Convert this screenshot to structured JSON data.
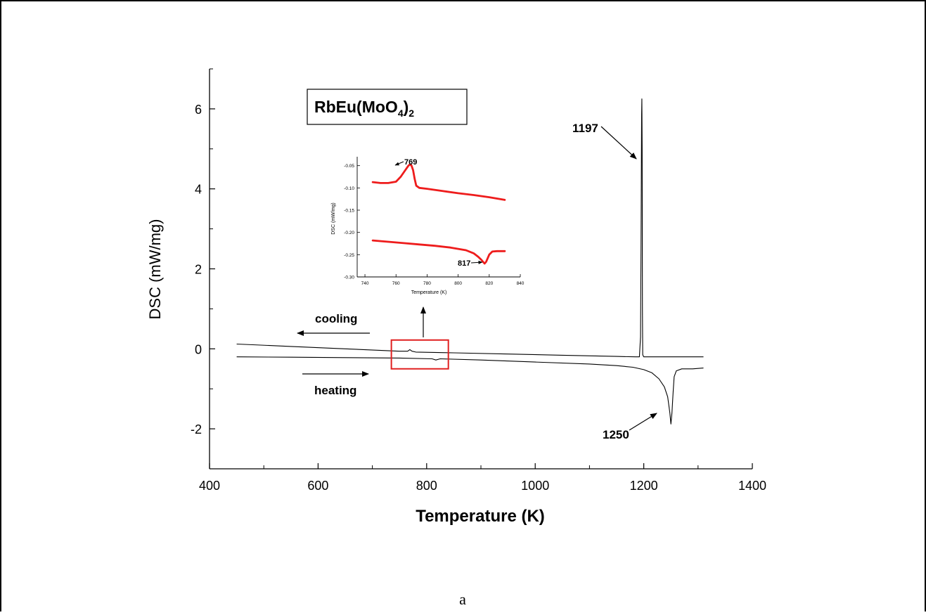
{
  "chart_data": [
    {
      "type": "line",
      "title": "",
      "xlabel": "Temperature (K)",
      "ylabel": "DSC (mW/mg)",
      "xlim": [
        400,
        1400
      ],
      "ylim": [
        -3,
        7
      ],
      "xticks": [
        400,
        600,
        800,
        1000,
        1200,
        1400
      ],
      "xtick_labels": [
        "400",
        "600",
        "800",
        "1000",
        "1200",
        "1400"
      ],
      "yticks": [
        -2,
        0,
        2,
        4,
        6
      ],
      "ytick_labels": [
        "-2",
        "0",
        "2",
        "4",
        "6"
      ],
      "grid": false,
      "series": [
        {
          "name": "cooling",
          "color": "#000000",
          "x": [
            450,
            550,
            650,
            750,
            765,
            769,
            773,
            780,
            850,
            950,
            1050,
            1150,
            1185,
            1192,
            1194,
            1195,
            1196,
            1196.5,
            1197,
            1197.5,
            1198,
            1200,
            1220,
            1310
          ],
          "y": [
            0.12,
            0.06,
            0.0,
            -0.06,
            -0.06,
            -0.02,
            -0.06,
            -0.08,
            -0.1,
            -0.13,
            -0.16,
            -0.19,
            -0.2,
            -0.2,
            0.3,
            2.5,
            5.8,
            6.25,
            5.0,
            1.0,
            -0.15,
            -0.2,
            -0.2,
            -0.2
          ]
        },
        {
          "name": "heating",
          "color": "#000000",
          "x": [
            450,
            550,
            650,
            750,
            810,
            817,
            825,
            900,
            1000,
            1100,
            1150,
            1180,
            1200,
            1215,
            1228,
            1238,
            1244,
            1248,
            1250,
            1252,
            1254,
            1256,
            1260,
            1270,
            1290,
            1310
          ],
          "y": [
            -0.2,
            -0.21,
            -0.22,
            -0.23,
            -0.25,
            -0.28,
            -0.25,
            -0.28,
            -0.33,
            -0.38,
            -0.42,
            -0.46,
            -0.52,
            -0.6,
            -0.75,
            -0.95,
            -1.2,
            -1.6,
            -1.88,
            -1.6,
            -1.1,
            -0.7,
            -0.55,
            -0.5,
            -0.5,
            -0.48
          ]
        }
      ],
      "annotations": [
        {
          "text": "1197",
          "x": 1197,
          "y": 6.0
        },
        {
          "text": "1250",
          "x": 1250,
          "y": -1.85
        },
        {
          "text": "cooling"
        },
        {
          "text": "heating"
        }
      ],
      "compound_label": {
        "prefix": "RbEu(MoO",
        "sub1": "4",
        "mid": ")",
        "sub2": "2"
      },
      "highlight_box": {
        "xlim": [
          735,
          840
        ],
        "ylim": [
          -0.5,
          0.22
        ],
        "color": "#e02020"
      }
    },
    {
      "type": "line",
      "title": "",
      "xlabel": "Temperature (K)",
      "ylabel": "DSC (mW/mg)",
      "xlim": [
        735,
        840
      ],
      "ylim": [
        -0.3,
        -0.03
      ],
      "xticks": [
        740,
        760,
        780,
        800,
        820,
        840
      ],
      "xtick_labels": [
        "740",
        "760",
        "780",
        "800",
        "820",
        "840"
      ],
      "yticks": [
        -0.05,
        -0.1,
        -0.15,
        -0.2,
        -0.25,
        -0.3
      ],
      "ytick_labels": [
        "-0.05",
        "-0.10",
        "-0.15",
        "-0.20",
        "-0.25",
        "-0.30"
      ],
      "series": [
        {
          "name": "cooling",
          "color": "#ee1c1c",
          "x": [
            745,
            750,
            755,
            760,
            763,
            766,
            768,
            769,
            770,
            771,
            772,
            773,
            775,
            780,
            790,
            800,
            810,
            820,
            830
          ],
          "y": [
            -0.087,
            -0.089,
            -0.089,
            -0.086,
            -0.075,
            -0.06,
            -0.05,
            -0.047,
            -0.05,
            -0.06,
            -0.08,
            -0.095,
            -0.1,
            -0.102,
            -0.107,
            -0.112,
            -0.116,
            -0.121,
            -0.127
          ]
        },
        {
          "name": "heating",
          "color": "#ee1c1c",
          "x": [
            745,
            755,
            765,
            775,
            785,
            795,
            805,
            810,
            813,
            815,
            816,
            817,
            818,
            819,
            820,
            822,
            825,
            830
          ],
          "y": [
            -0.218,
            -0.221,
            -0.224,
            -0.227,
            -0.23,
            -0.234,
            -0.24,
            -0.247,
            -0.255,
            -0.262,
            -0.266,
            -0.27,
            -0.266,
            -0.258,
            -0.25,
            -0.243,
            -0.242,
            -0.242
          ]
        }
      ],
      "annotations": [
        {
          "text": "769",
          "x": 769,
          "y": -0.047
        },
        {
          "text": "817",
          "x": 817,
          "y": -0.27
        }
      ]
    }
  ],
  "caption": "a"
}
